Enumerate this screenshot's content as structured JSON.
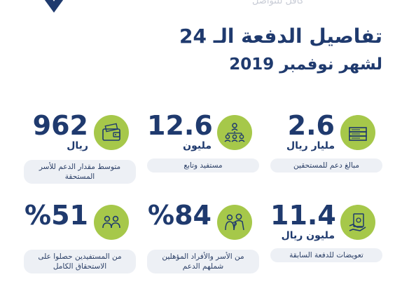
{
  "header": {
    "top_text": "كافل للتواصل",
    "title_line1": "تفاصيل الدفعة الـ 24",
    "title_line2": "لشهر نوفمبر 2019"
  },
  "stats": [
    {
      "value": "2.6",
      "unit": "مليار ريال",
      "label": "مبالغ دعم للمستحقين",
      "icon": "money-stack-icon"
    },
    {
      "value": "12.6",
      "unit": "مليون",
      "label": "مستفيد وتابع",
      "icon": "people-network-icon"
    },
    {
      "value": "962",
      "unit": "ريال",
      "label": "متوسط مقدار الدعم للأسر المستحقة",
      "icon": "wallet-icon"
    },
    {
      "value": "11.4",
      "unit": "مليون ريال",
      "label": "تعويضات للدفعة السابقة",
      "icon": "hand-cash-icon"
    },
    {
      "value": "%84",
      "unit": "",
      "label": "من الأسر والأفراد المؤهلين شملهم الدعم",
      "icon": "family-icon"
    },
    {
      "value": "%51",
      "unit": "",
      "label": "من المستفيدين حصلوا على الاستحقاق الكامل",
      "icon": "two-people-icon"
    }
  ],
  "colors": {
    "navy": "#1f3a6e",
    "green": "#a6c84a",
    "pill": "#edf0f5"
  }
}
